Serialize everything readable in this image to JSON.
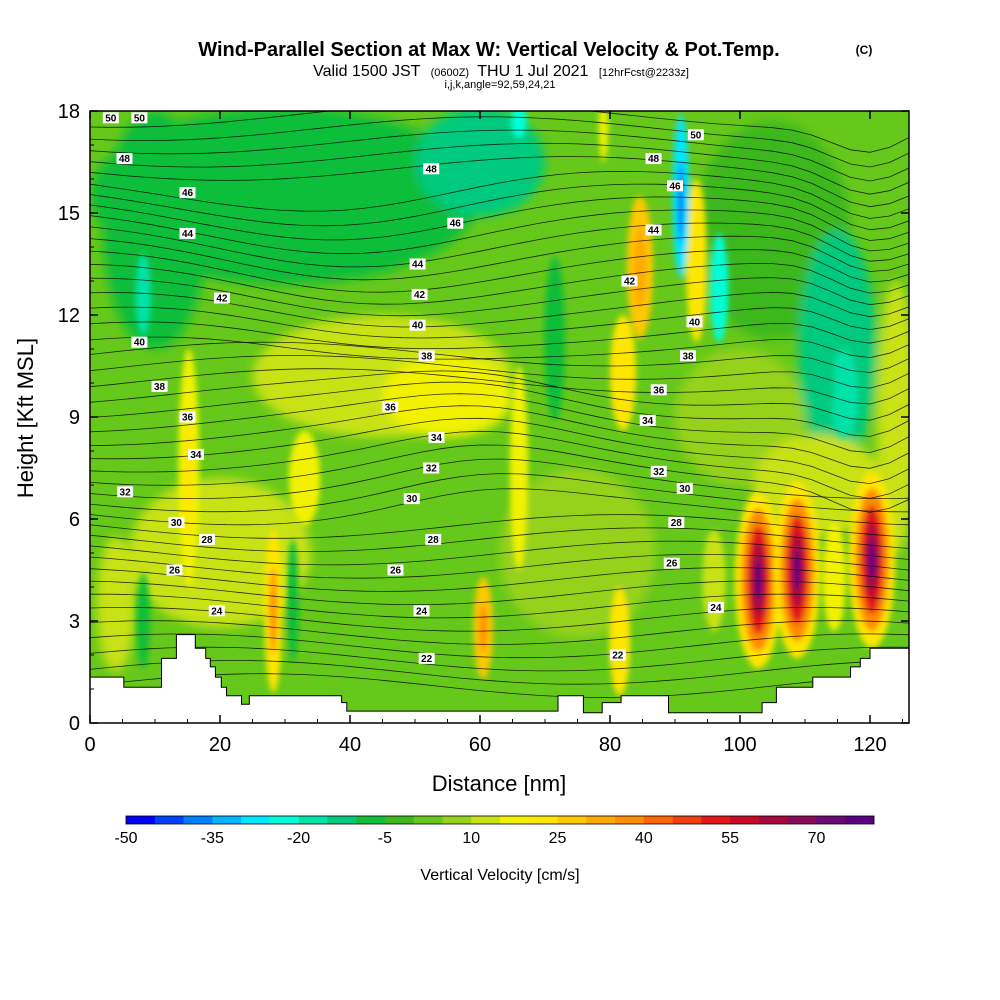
{
  "title": {
    "main": "Wind-Parallel Section at Max W: Vertical Velocity & Pot.Temp.",
    "main_suffix": "(C)",
    "line2_a": "Valid 1500 JST",
    "line2_b": "(0600Z)",
    "line2_c": "THU 1 Jul 2021",
    "line2_d": "[12hrFcst@2233z]",
    "line3": "i,j,k,angle=92,59,24,21"
  },
  "chart_data": {
    "type": "heatmap",
    "xlabel": "Distance [nm]",
    "ylabel": "Height [Kft MSL]",
    "xlim": [
      0,
      126
    ],
    "ylim": [
      0,
      18
    ],
    "x_ticks": [
      "0",
      "20",
      "40",
      "60",
      "80",
      "100",
      "120"
    ],
    "y_ticks": [
      "0",
      "3",
      "6",
      "9",
      "12",
      "15",
      "18"
    ],
    "grid": false,
    "colorbar": {
      "label": "Vertical Velocity [cm/s]",
      "tick_labels": [
        "-50",
        "-35",
        "-20",
        "-5",
        "10",
        "25",
        "40",
        "55",
        "70"
      ],
      "tick_values": [
        -50,
        -35,
        -20,
        -5,
        10,
        25,
        40,
        55,
        70
      ],
      "range": [
        -50,
        80
      ],
      "step": 5,
      "colors": [
        "#0000ff",
        "#0040ff",
        "#0080ff",
        "#00b4ff",
        "#00e6ff",
        "#00ffd8",
        "#00e2a8",
        "#00ca7e",
        "#10be3a",
        "#3cb81c",
        "#66c81a",
        "#96d21a",
        "#c8e214",
        "#f2f200",
        "#ffe600",
        "#ffc800",
        "#ffaa00",
        "#ff8c00",
        "#ff6600",
        "#f04010",
        "#e01818",
        "#c80a28",
        "#a80840",
        "#8a0a5a",
        "#6a0a78",
        "#5a0080"
      ]
    },
    "theta_contours": {
      "units": "C",
      "levels": [
        22,
        24,
        26,
        28,
        30,
        32,
        34,
        36,
        38,
        40,
        42,
        44,
        46,
        48,
        50
      ],
      "labels": [
        {
          "text": "50",
          "x": 3.2,
          "y": 17.8
        },
        {
          "text": "50",
          "x": 7.6,
          "y": 17.8
        },
        {
          "text": "48",
          "x": 5.3,
          "y": 16.6
        },
        {
          "text": "46",
          "x": 15.0,
          "y": 15.6
        },
        {
          "text": "44",
          "x": 15.0,
          "y": 14.4
        },
        {
          "text": "42",
          "x": 20.3,
          "y": 12.5
        },
        {
          "text": "40",
          "x": 7.6,
          "y": 11.2
        },
        {
          "text": "38",
          "x": 10.7,
          "y": 9.9
        },
        {
          "text": "36",
          "x": 15.0,
          "y": 9.0
        },
        {
          "text": "34",
          "x": 16.3,
          "y": 7.9
        },
        {
          "text": "32",
          "x": 5.4,
          "y": 6.8
        },
        {
          "text": "30",
          "x": 13.3,
          "y": 5.9
        },
        {
          "text": "28",
          "x": 18.0,
          "y": 5.4
        },
        {
          "text": "26",
          "x": 13.0,
          "y": 4.5
        },
        {
          "text": "24",
          "x": 19.5,
          "y": 3.3
        },
        {
          "text": "48",
          "x": 52.5,
          "y": 16.3
        },
        {
          "text": "46",
          "x": 56.2,
          "y": 14.7
        },
        {
          "text": "44",
          "x": 50.4,
          "y": 13.5
        },
        {
          "text": "42",
          "x": 50.7,
          "y": 12.6
        },
        {
          "text": "40",
          "x": 50.4,
          "y": 11.7
        },
        {
          "text": "38",
          "x": 51.8,
          "y": 10.8
        },
        {
          "text": "36",
          "x": 46.2,
          "y": 9.3
        },
        {
          "text": "34",
          "x": 53.3,
          "y": 8.4
        },
        {
          "text": "32",
          "x": 52.5,
          "y": 7.5
        },
        {
          "text": "30",
          "x": 49.5,
          "y": 6.6
        },
        {
          "text": "28",
          "x": 52.8,
          "y": 5.4
        },
        {
          "text": "26",
          "x": 47.0,
          "y": 4.5
        },
        {
          "text": "24",
          "x": 51.0,
          "y": 3.3
        },
        {
          "text": "22",
          "x": 51.8,
          "y": 1.9
        },
        {
          "text": "22",
          "x": 81.2,
          "y": 2.0
        },
        {
          "text": "50",
          "x": 93.2,
          "y": 17.3
        },
        {
          "text": "48",
          "x": 86.7,
          "y": 16.6
        },
        {
          "text": "46",
          "x": 90.0,
          "y": 15.8
        },
        {
          "text": "44",
          "x": 86.7,
          "y": 14.5
        },
        {
          "text": "42",
          "x": 83.0,
          "y": 13.0
        },
        {
          "text": "40",
          "x": 93.0,
          "y": 11.8
        },
        {
          "text": "38",
          "x": 92.0,
          "y": 10.8
        },
        {
          "text": "36",
          "x": 87.5,
          "y": 9.8
        },
        {
          "text": "34",
          "x": 85.8,
          "y": 8.9
        },
        {
          "text": "32",
          "x": 87.5,
          "y": 7.4
        },
        {
          "text": "30",
          "x": 91.5,
          "y": 6.9
        },
        {
          "text": "28",
          "x": 90.2,
          "y": 5.9
        },
        {
          "text": "26",
          "x": 89.5,
          "y": 4.7
        },
        {
          "text": "24",
          "x": 96.3,
          "y": 3.4
        }
      ]
    },
    "features": [
      {
        "name": "strong-updraft",
        "x": 102.8,
        "y": 4.2,
        "max_cm_s": 75
      },
      {
        "name": "strong-updraft",
        "x": 108.8,
        "y": 4.5,
        "max_cm_s": 75
      },
      {
        "name": "strong-updraft",
        "x": 120.3,
        "y": 4.8,
        "max_cm_s": 78
      },
      {
        "name": "downdraft",
        "x": 90.9,
        "y": 15.3,
        "min_cm_s": -35
      },
      {
        "name": "downdraft",
        "x": 97.0,
        "y": 12.5,
        "min_cm_s": -25
      },
      {
        "name": "downdraft",
        "x": 8.2,
        "y": 12.5,
        "min_cm_s": -15
      },
      {
        "name": "updraft",
        "x": 84.5,
        "y": 13.2,
        "max_cm_s": 30
      },
      {
        "name": "updraft",
        "x": 93.3,
        "y": 13.5,
        "max_cm_s": 25
      },
      {
        "name": "updraft",
        "x": 60.5,
        "y": 2.8,
        "max_cm_s": 35
      },
      {
        "name": "updraft",
        "x": 28.0,
        "y": 3.2,
        "max_cm_s": 28
      }
    ],
    "terrain": [
      [
        0,
        1.35
      ],
      [
        5.2,
        1.35
      ],
      [
        5.2,
        1.05
      ],
      [
        11.0,
        1.05
      ],
      [
        11.0,
        1.9
      ],
      [
        13.3,
        1.9
      ],
      [
        13.3,
        2.6
      ],
      [
        16.2,
        2.6
      ],
      [
        16.2,
        2.2
      ],
      [
        17.8,
        2.2
      ],
      [
        17.8,
        1.9
      ],
      [
        18.5,
        1.9
      ],
      [
        18.5,
        1.65
      ],
      [
        19.3,
        1.65
      ],
      [
        19.3,
        1.35
      ],
      [
        20.2,
        1.35
      ],
      [
        20.2,
        1.05
      ],
      [
        21.0,
        1.05
      ],
      [
        21.0,
        0.8
      ],
      [
        23.3,
        0.8
      ],
      [
        23.3,
        0.55
      ],
      [
        24.5,
        0.55
      ],
      [
        24.5,
        0.8
      ],
      [
        38.7,
        0.8
      ],
      [
        38.7,
        0.6
      ],
      [
        39.5,
        0.6
      ],
      [
        39.5,
        0.35
      ],
      [
        72.0,
        0.35
      ],
      [
        72.0,
        0.8
      ],
      [
        75.9,
        0.8
      ],
      [
        75.9,
        0.3
      ],
      [
        78.8,
        0.3
      ],
      [
        78.8,
        0.6
      ],
      [
        81.7,
        0.6
      ],
      [
        81.7,
        0.8
      ],
      [
        89.0,
        0.8
      ],
      [
        89.0,
        0.3
      ],
      [
        103.4,
        0.3
      ],
      [
        103.4,
        0.6
      ],
      [
        105.6,
        0.6
      ],
      [
        105.6,
        1.05
      ],
      [
        111.2,
        1.05
      ],
      [
        111.2,
        1.35
      ],
      [
        117.0,
        1.35
      ],
      [
        117.0,
        1.65
      ],
      [
        118.5,
        1.65
      ],
      [
        118.5,
        1.9
      ],
      [
        120.0,
        1.9
      ],
      [
        120.0,
        2.2
      ],
      [
        126,
        2.2
      ]
    ]
  }
}
